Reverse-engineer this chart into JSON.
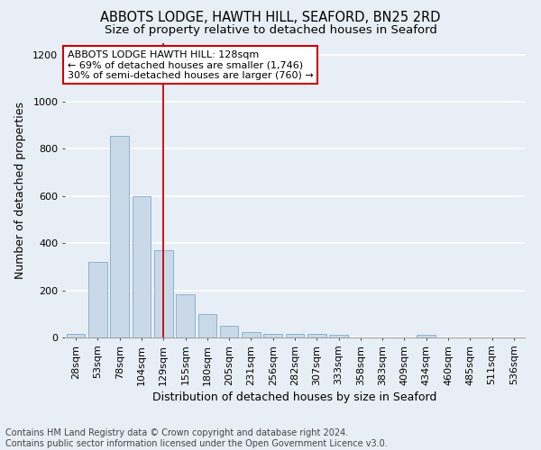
{
  "title1": "ABBOTS LODGE, HAWTH HILL, SEAFORD, BN25 2RD",
  "title2": "Size of property relative to detached houses in Seaford",
  "xlabel": "Distribution of detached houses by size in Seaford",
  "ylabel": "Number of detached properties",
  "categories": [
    "28sqm",
    "53sqm",
    "78sqm",
    "104sqm",
    "129sqm",
    "155sqm",
    "180sqm",
    "205sqm",
    "231sqm",
    "256sqm",
    "282sqm",
    "307sqm",
    "333sqm",
    "358sqm",
    "383sqm",
    "409sqm",
    "434sqm",
    "460sqm",
    "485sqm",
    "511sqm",
    "536sqm"
  ],
  "values": [
    15,
    320,
    855,
    600,
    370,
    185,
    100,
    48,
    22,
    17,
    17,
    17,
    10,
    0,
    0,
    0,
    12,
    0,
    0,
    0,
    0
  ],
  "bar_color": "#c9d9e8",
  "bar_edge_color": "#8ab4cf",
  "vline_x": 4,
  "vline_color": "#cc0000",
  "annotation_text": "ABBOTS LODGE HAWTH HILL: 128sqm\n← 69% of detached houses are smaller (1,746)\n30% of semi-detached houses are larger (760) →",
  "annotation_box_facecolor": "white",
  "annotation_box_edge_color": "#cc0000",
  "ylim": [
    0,
    1250
  ],
  "yticks": [
    0,
    200,
    400,
    600,
    800,
    1000,
    1200
  ],
  "footnote": "Contains HM Land Registry data © Crown copyright and database right 2024.\nContains public sector information licensed under the Open Government Licence v3.0.",
  "bg_color": "#e8eef5",
  "plot_bg_color": "#e8eef5",
  "grid_color": "white",
  "title1_fontsize": 10.5,
  "title2_fontsize": 9.5,
  "xlabel_fontsize": 9,
  "ylabel_fontsize": 9,
  "tick_fontsize": 8,
  "annotation_fontsize": 8,
  "footnote_fontsize": 7
}
